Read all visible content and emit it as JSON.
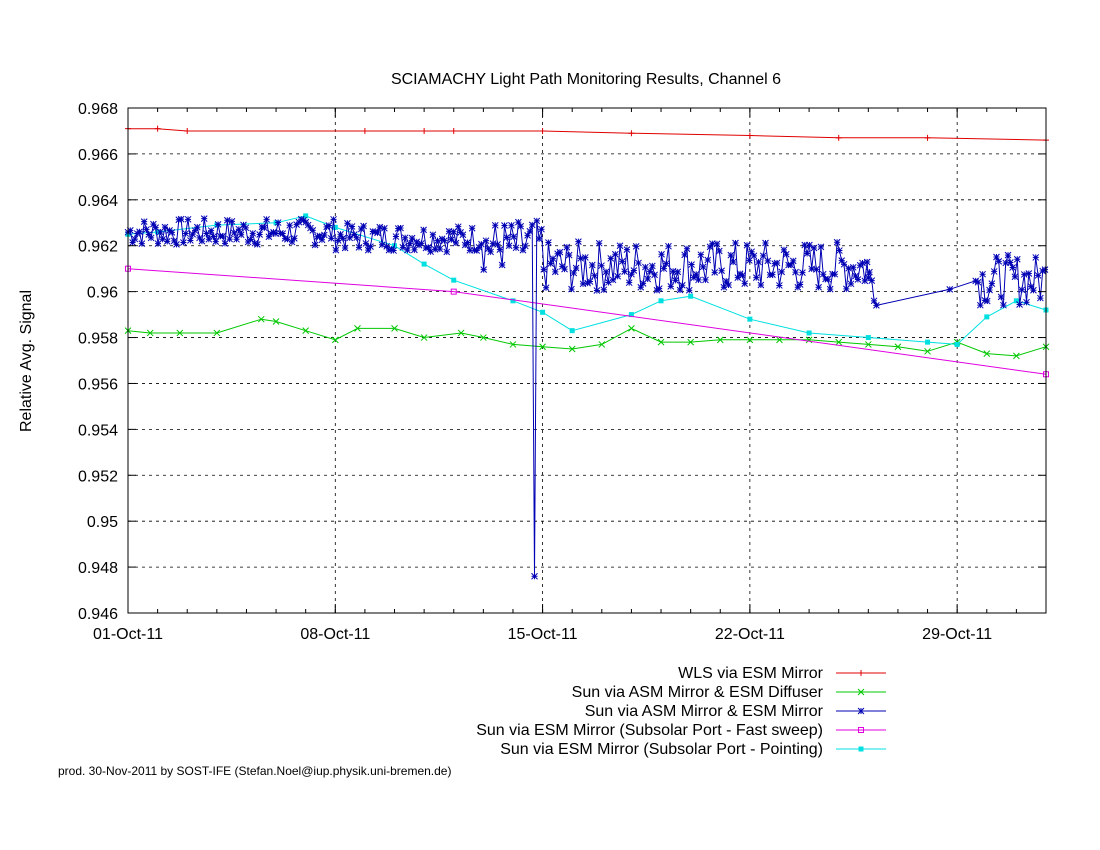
{
  "footer": "prod. 30-Nov-2011 by SOST-IFE (Stefan.Noel@iup.physik.uni-bremen.de)",
  "chart_data": {
    "type": "line",
    "title": "SCIAMACHY Light Path Monitoring Results, Channel 6",
    "xlabel": "",
    "ylabel": "Relative Avg. Signal",
    "xlim": [
      "2011-10-01",
      "2011-11-01"
    ],
    "ylim": [
      0.946,
      0.968
    ],
    "xticks": [
      {
        "date": "2011-10-01",
        "label": "01-Oct-11"
      },
      {
        "date": "2011-10-08",
        "label": "08-Oct-11"
      },
      {
        "date": "2011-10-15",
        "label": "15-Oct-11"
      },
      {
        "date": "2011-10-22",
        "label": "22-Oct-11"
      },
      {
        "date": "2011-10-29",
        "label": "29-Oct-11"
      }
    ],
    "yticks": [
      {
        "value": 0.946,
        "label": "0.946"
      },
      {
        "value": 0.948,
        "label": "0.948"
      },
      {
        "value": 0.95,
        "label": "0.95"
      },
      {
        "value": 0.952,
        "label": "0.952"
      },
      {
        "value": 0.954,
        "label": "0.954"
      },
      {
        "value": 0.956,
        "label": "0.956"
      },
      {
        "value": 0.958,
        "label": "0.958"
      },
      {
        "value": 0.96,
        "label": "0.96"
      },
      {
        "value": 0.962,
        "label": "0.962"
      },
      {
        "value": 0.964,
        "label": "0.964"
      },
      {
        "value": 0.966,
        "label": "0.966"
      },
      {
        "value": 0.968,
        "label": "0.968"
      }
    ],
    "grid": true,
    "legend_position": "bottom-right",
    "series": [
      {
        "name": "WLS via ESM Mirror",
        "color": "#e00000",
        "marker": "plus",
        "x": [
          "2011-10-01",
          "2011-10-02",
          "2011-10-03",
          "2011-10-09",
          "2011-10-11",
          "2011-10-12",
          "2011-10-15",
          "2011-10-18",
          "2011-10-22",
          "2011-10-25",
          "2011-10-28",
          "2011-11-01"
        ],
        "y": [
          0.9671,
          0.9671,
          0.967,
          0.967,
          0.967,
          0.967,
          0.967,
          0.9669,
          0.9668,
          0.9667,
          0.9667,
          0.9666
        ]
      },
      {
        "name": "Sun via ASM Mirror & ESM Diffuser",
        "color": "#00c800",
        "marker": "cross",
        "x": [
          "2011-10-01",
          "2011-10-01 18:00",
          "2011-10-02 18:00",
          "2011-10-04",
          "2011-10-05 12:00",
          "2011-10-06",
          "2011-10-07",
          "2011-10-08",
          "2011-10-08 18:00",
          "2011-10-10",
          "2011-10-11",
          "2011-10-12 06:00",
          "2011-10-13",
          "2011-10-14",
          "2011-10-15",
          "2011-10-16",
          "2011-10-17",
          "2011-10-18",
          "2011-10-19",
          "2011-10-20",
          "2011-10-21",
          "2011-10-22",
          "2011-10-23",
          "2011-10-24",
          "2011-10-25",
          "2011-10-26",
          "2011-10-27",
          "2011-10-28",
          "2011-10-29",
          "2011-10-30",
          "2011-10-31",
          "2011-11-01"
        ],
        "y": [
          0.9583,
          0.9582,
          0.9582,
          0.9582,
          0.9588,
          0.9587,
          0.9583,
          0.9579,
          0.9584,
          0.9584,
          0.958,
          0.9582,
          0.958,
          0.9577,
          0.9576,
          0.9575,
          0.9577,
          0.9584,
          0.9578,
          0.9578,
          0.9579,
          0.9579,
          0.9579,
          0.9579,
          0.9578,
          0.9577,
          0.9576,
          0.9574,
          0.9578,
          0.9573,
          0.9572,
          0.9576
        ]
      },
      {
        "name": "Sun via ASM Mirror & ESM Mirror",
        "color": "#0000b4",
        "marker": "star",
        "x": [],
        "y": []
      },
      {
        "name": "Sun via ESM Mirror (Subsolar Port - Fast sweep)",
        "color": "#e000e0",
        "marker": "square-open",
        "x": [
          "2011-10-01",
          "2011-10-12",
          "2011-11-01"
        ],
        "y": [
          0.961,
          0.96,
          0.9564
        ]
      },
      {
        "name": "Sun via ESM Mirror (Subsolar Port - Pointing)",
        "color": "#00e0e0",
        "marker": "square-filled",
        "x": [
          "2011-10-01",
          "2011-10-02",
          "2011-10-04",
          "2011-10-06",
          "2011-10-07",
          "2011-10-08",
          "2011-10-10",
          "2011-10-11",
          "2011-10-12",
          "2011-10-14",
          "2011-10-15",
          "2011-10-16",
          "2011-10-18",
          "2011-10-19",
          "2011-10-20",
          "2011-10-22",
          "2011-10-24",
          "2011-10-26",
          "2011-10-28",
          "2011-10-29",
          "2011-10-30",
          "2011-10-31",
          "2011-11-01"
        ],
        "y": [
          0.9625,
          0.9626,
          0.9629,
          0.963,
          0.9633,
          0.9628,
          0.962,
          0.9612,
          0.9605,
          0.9596,
          0.9591,
          0.9583,
          0.959,
          0.9596,
          0.9598,
          0.9588,
          0.9582,
          0.958,
          0.9578,
          0.9577,
          0.9589,
          0.9596,
          0.9592
        ]
      }
    ]
  }
}
